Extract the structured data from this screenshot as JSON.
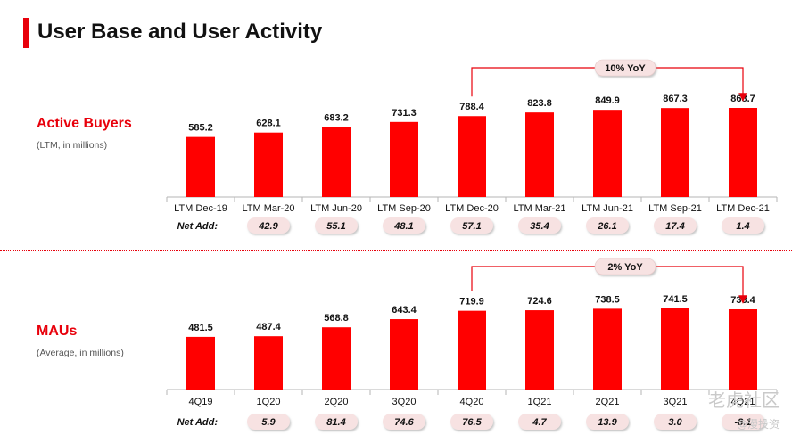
{
  "page": {
    "title": "User Base and User Activity",
    "divider_color": "#e8000b",
    "watermark_primary": "老虎社区",
    "watermark_secondary": "@漫投资"
  },
  "colors": {
    "accent": "#e8000b",
    "bar": "#ff0000",
    "pill": "#f7e2e2",
    "text": "#111111"
  },
  "chart_data": [
    {
      "type": "bar",
      "title": "Active Buyers",
      "subtitle": "(LTM, in millions)",
      "categories": [
        "LTM Dec-19",
        "LTM Mar-20",
        "LTM Jun-20",
        "LTM Sep-20",
        "LTM Dec-20",
        "LTM Mar-21",
        "LTM Jun-21",
        "LTM Sep-21",
        "LTM Dec-21"
      ],
      "values": [
        585.2,
        628.1,
        683.2,
        731.3,
        788.4,
        823.8,
        849.9,
        867.3,
        868.7
      ],
      "net_add_label": "Net Add:",
      "net_add": [
        42.9,
        55.1,
        48.1,
        57.1,
        35.4,
        26.1,
        17.4,
        1.4
      ],
      "yoy": {
        "label": "10% YoY",
        "from": "LTM Dec-20",
        "to": "LTM Dec-21"
      },
      "grid": false
    },
    {
      "type": "bar",
      "title": "MAUs",
      "subtitle": "(Average, in millions)",
      "categories": [
        "4Q19",
        "1Q20",
        "2Q20",
        "3Q20",
        "4Q20",
        "1Q21",
        "2Q21",
        "3Q21",
        "4Q21"
      ],
      "values": [
        481.5,
        487.4,
        568.8,
        643.4,
        719.9,
        724.6,
        738.5,
        741.5,
        733.4
      ],
      "net_add_label": "Net Add:",
      "net_add": [
        5.9,
        81.4,
        74.6,
        76.5,
        4.7,
        13.9,
        3.0,
        -8.1
      ],
      "yoy": {
        "label": "2% YoY",
        "from": "4Q20",
        "to": "4Q21"
      },
      "grid": false
    }
  ]
}
